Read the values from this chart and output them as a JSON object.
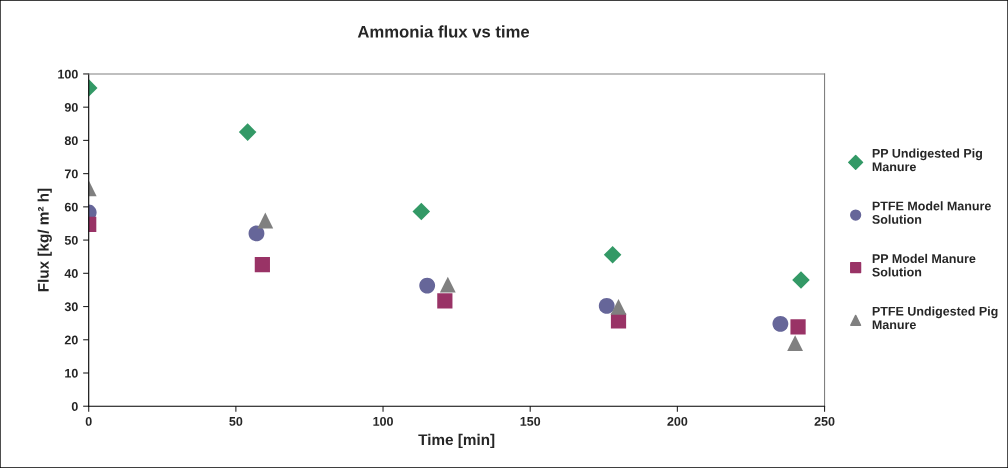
{
  "chart_data": {
    "type": "scatter",
    "title": "Ammonia flux vs time",
    "xlabel": "Time [min]",
    "ylabel": "Flux [kg/ m² h]",
    "xlim": [
      0,
      250
    ],
    "xticks": [
      0,
      50,
      100,
      150,
      200,
      250
    ],
    "ylim": [
      0,
      100
    ],
    "yticks": [
      0,
      10,
      20,
      30,
      40,
      50,
      60,
      70,
      80,
      90,
      100
    ],
    "grid": false,
    "legend": "right",
    "series": [
      {
        "name": "PP Undigested Pig Manure",
        "color": "#339966",
        "marker": "diamond",
        "x": [
          0,
          54,
          113,
          178,
          242
        ],
        "values": [
          95.8,
          82.5,
          58.6,
          45.6,
          38
        ]
      },
      {
        "name": "PTFE Model Manure Solution",
        "color": "#666699",
        "marker": "circle",
        "x": [
          0,
          57,
          115,
          176,
          235
        ],
        "values": [
          58.3,
          52,
          36.3,
          30.2,
          24.8
        ]
      },
      {
        "name": "PP Model Manure Solution",
        "color": "#993366",
        "marker": "square",
        "x": [
          0,
          59,
          121,
          180,
          241
        ],
        "values": [
          54.7,
          42.6,
          31.7,
          25.7,
          23.9
        ]
      },
      {
        "name": "PTFE Undigested Pig Manure",
        "color": "#808080",
        "marker": "triangle",
        "x": [
          0,
          60,
          122,
          180,
          240
        ],
        "values": [
          65.6,
          55.9,
          36.6,
          29.9,
          19
        ]
      }
    ]
  }
}
